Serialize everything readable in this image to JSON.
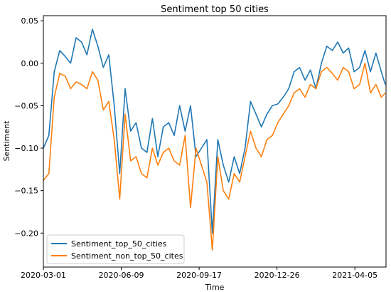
{
  "chart_data": {
    "type": "line",
    "title": "Sentiment top 50 cities",
    "xlabel": "Time",
    "ylabel": "Sentiment",
    "x_ticks": [
      "2020-03-01",
      "2020-06-09",
      "2020-09-17",
      "2020-12-26",
      "2021-04-05"
    ],
    "y_ticks": [
      "0.05",
      "0.00",
      "−0.05",
      "−0.10",
      "−0.15",
      "−0.20"
    ],
    "xlim": [
      "2020-03-01",
      "2021-05-15"
    ],
    "ylim": [
      -0.24,
      0.056
    ],
    "grid": false,
    "legend_position": "lower-left",
    "x": [
      "2020-03-01",
      "2020-03-08",
      "2020-03-15",
      "2020-03-22",
      "2020-03-29",
      "2020-04-05",
      "2020-04-12",
      "2020-04-19",
      "2020-04-26",
      "2020-05-03",
      "2020-05-10",
      "2020-05-17",
      "2020-05-24",
      "2020-05-31",
      "2020-06-07",
      "2020-06-14",
      "2020-06-21",
      "2020-06-28",
      "2020-07-05",
      "2020-07-12",
      "2020-07-19",
      "2020-07-26",
      "2020-08-02",
      "2020-08-09",
      "2020-08-16",
      "2020-08-23",
      "2020-08-30",
      "2020-09-06",
      "2020-09-13",
      "2020-09-20",
      "2020-09-27",
      "2020-10-04",
      "2020-10-11",
      "2020-10-18",
      "2020-10-25",
      "2020-11-01",
      "2020-11-08",
      "2020-11-15",
      "2020-11-22",
      "2020-11-29",
      "2020-12-06",
      "2020-12-13",
      "2020-12-20",
      "2020-12-27",
      "2021-01-03",
      "2021-01-10",
      "2021-01-17",
      "2021-01-24",
      "2021-01-31",
      "2021-02-07",
      "2021-02-14",
      "2021-02-21",
      "2021-02-28",
      "2021-03-07",
      "2021-03-14",
      "2021-03-21",
      "2021-03-28",
      "2021-04-04",
      "2021-04-11",
      "2021-04-18",
      "2021-04-25",
      "2021-05-02",
      "2021-05-09",
      "2021-05-14"
    ],
    "series": [
      {
        "name": "Sentiment_top_50_cities",
        "color": "#1f77b4",
        "values": [
          -0.1,
          -0.085,
          -0.01,
          0.015,
          0.008,
          0.0,
          0.03,
          0.025,
          0.01,
          0.04,
          0.02,
          -0.005,
          0.01,
          -0.05,
          -0.13,
          -0.03,
          -0.08,
          -0.07,
          -0.1,
          -0.105,
          -0.065,
          -0.11,
          -0.075,
          -0.07,
          -0.085,
          -0.05,
          -0.08,
          -0.05,
          -0.11,
          -0.1,
          -0.09,
          -0.2,
          -0.09,
          -0.12,
          -0.14,
          -0.11,
          -0.13,
          -0.1,
          -0.045,
          -0.06,
          -0.075,
          -0.06,
          -0.05,
          -0.048,
          -0.04,
          -0.03,
          -0.01,
          -0.005,
          -0.02,
          -0.008,
          -0.03,
          0.0,
          0.02,
          0.015,
          0.025,
          0.012,
          0.018,
          -0.01,
          -0.005,
          0.015,
          -0.01,
          0.012,
          -0.01,
          -0.025
        ]
      },
      {
        "name": "Sentiment_non_top_50_cites",
        "color": "#ff7f0e",
        "values": [
          -0.138,
          -0.13,
          -0.04,
          -0.012,
          -0.015,
          -0.03,
          -0.022,
          -0.025,
          -0.03,
          -0.01,
          -0.02,
          -0.055,
          -0.045,
          -0.09,
          -0.16,
          -0.06,
          -0.115,
          -0.11,
          -0.13,
          -0.135,
          -0.1,
          -0.12,
          -0.105,
          -0.1,
          -0.115,
          -0.12,
          -0.085,
          -0.17,
          -0.1,
          -0.12,
          -0.14,
          -0.22,
          -0.11,
          -0.15,
          -0.16,
          -0.13,
          -0.14,
          -0.11,
          -0.08,
          -0.1,
          -0.11,
          -0.09,
          -0.085,
          -0.07,
          -0.06,
          -0.05,
          -0.035,
          -0.03,
          -0.04,
          -0.025,
          -0.03,
          -0.01,
          -0.005,
          -0.012,
          -0.02,
          -0.005,
          -0.01,
          -0.03,
          -0.025,
          0.0,
          -0.035,
          -0.025,
          -0.04,
          -0.035
        ]
      }
    ]
  }
}
